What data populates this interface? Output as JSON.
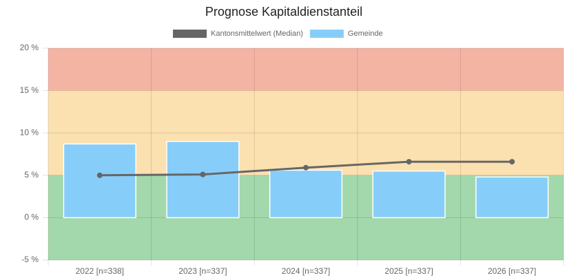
{
  "chart_data": {
    "type": "bar",
    "title": "Prognose Kapitaldienstanteil",
    "categories": [
      "2022 [n=338]",
      "2023 [n=337]",
      "2024 [n=337]",
      "2025 [n=337]",
      "2026 [n=337]"
    ],
    "series": [
      {
        "name": "Kantonsmittelwert (Median)",
        "type": "line",
        "color": "#666666",
        "values": [
          5.0,
          5.1,
          5.9,
          6.6,
          6.6
        ]
      },
      {
        "name": "Gemeinde",
        "type": "bar",
        "color": "#87cdf9",
        "values": [
          8.7,
          9.0,
          5.6,
          5.5,
          4.8
        ]
      }
    ],
    "bands": [
      {
        "from": 15,
        "to": 20,
        "color": "#f4b4a4"
      },
      {
        "from": 5,
        "to": 15,
        "color": "#fbe0b0"
      },
      {
        "from": -5,
        "to": 5,
        "color": "#a2d8ab"
      }
    ],
    "ylim": [
      -5,
      20
    ],
    "yticks": [
      {
        "value": -5,
        "label": "-5 %"
      },
      {
        "value": 0,
        "label": "0 %"
      },
      {
        "value": 5,
        "label": "5 %"
      },
      {
        "value": 10,
        "label": "10 %"
      },
      {
        "value": 15,
        "label": "15 %"
      },
      {
        "value": 20,
        "label": "20 %"
      }
    ],
    "grid": true
  }
}
